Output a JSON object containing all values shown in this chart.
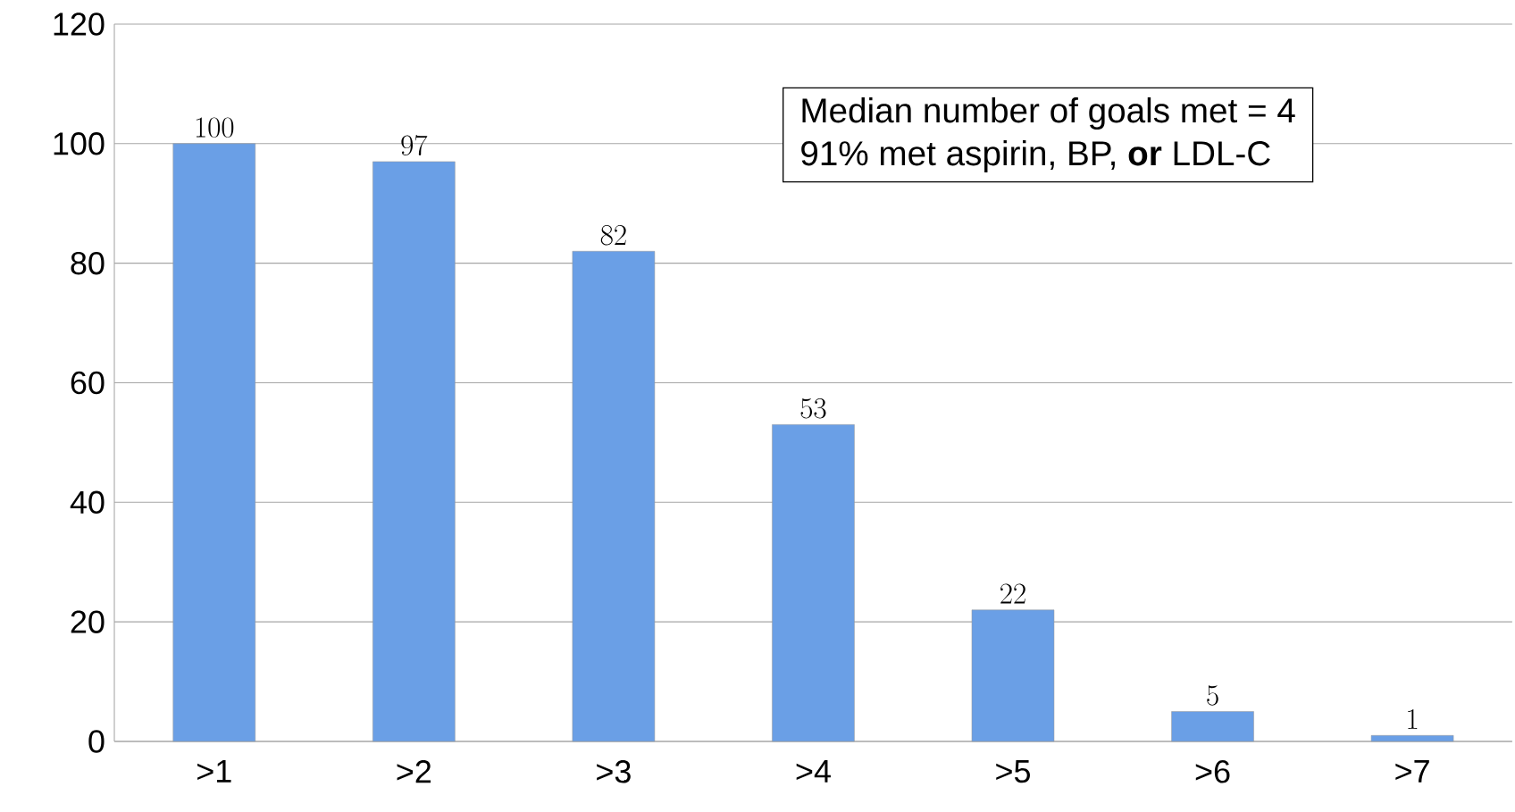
{
  "chart_data": {
    "type": "bar",
    "categories": [
      ">1",
      ">2",
      ">3",
      ">4",
      ">5",
      ">6",
      ">7"
    ],
    "values": [
      100,
      97,
      82,
      53,
      22,
      5,
      1
    ],
    "color": "#6a9fe6",
    "ylim": [
      0,
      120
    ],
    "yticks": [
      0,
      20,
      40,
      60,
      80,
      100,
      120
    ],
    "grid": "y",
    "data_labels": true,
    "annotations": [
      "Median number of goals met = 4",
      "91% met aspirin, BP, **or** LDL-C"
    ]
  }
}
